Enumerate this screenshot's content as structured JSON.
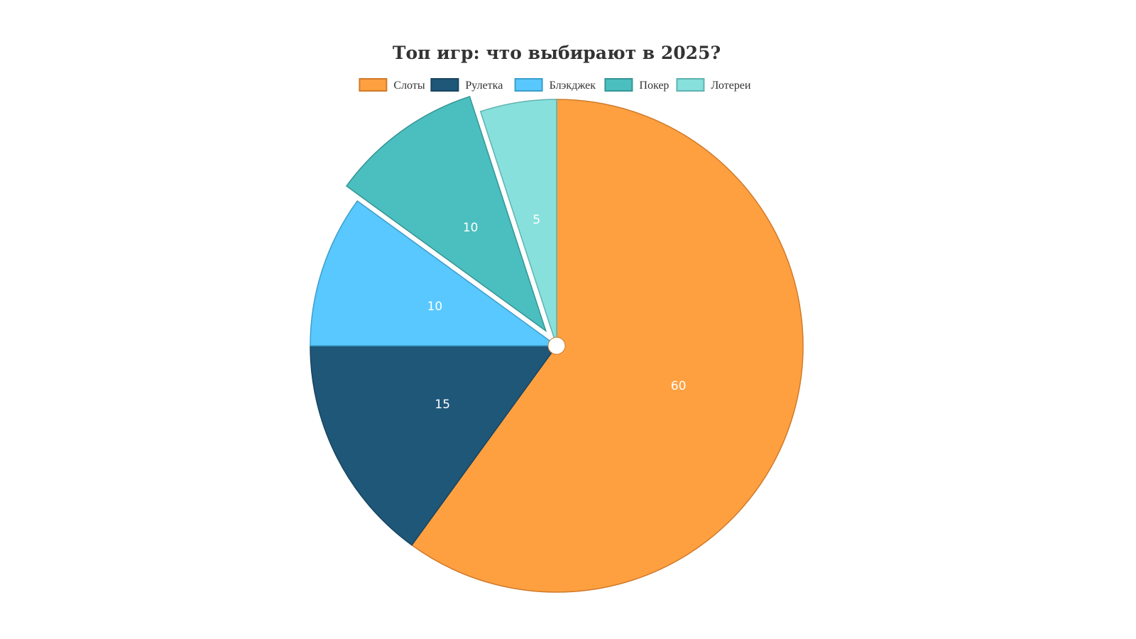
{
  "chart_data": {
    "type": "pie",
    "title": "Топ игр: что выбирают в 2025?",
    "legend_position": "top",
    "start_angle": "top, clockwise",
    "slices": [
      {
        "label": "Слоты",
        "value": 60,
        "color": "#FFA040",
        "border": "#D07A2A",
        "exploded": false
      },
      {
        "label": "Рулетка",
        "value": 15,
        "color": "#1F5779",
        "border": "#174560",
        "exploded": false
      },
      {
        "label": "Блэкджек",
        "value": 10,
        "color": "#58C8FF",
        "border": "#3B9ECC",
        "exploded": false
      },
      {
        "label": "Покер",
        "value": 10,
        "color": "#4BBFBF",
        "border": "#359595",
        "exploded": true
      },
      {
        "label": "Лотереи",
        "value": 5,
        "color": "#88E0DD",
        "border": "#5FB3B0",
        "exploded": false
      }
    ]
  }
}
